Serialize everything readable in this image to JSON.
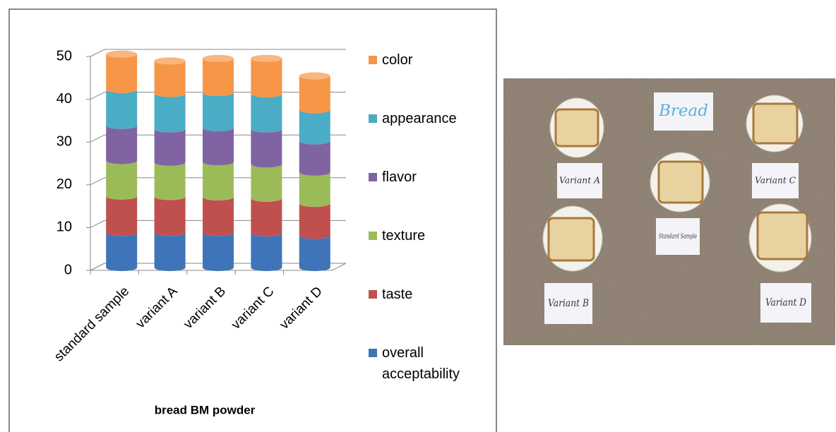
{
  "chart_data": {
    "type": "stacked-bar",
    "x_label": "bread BM powder",
    "categories": [
      "standard sample",
      "variant A",
      "variant B",
      "variant C",
      "variant D"
    ],
    "series": [
      {
        "name": "overall acceptability",
        "color": "#3f74b8",
        "values": [
          8.2,
          8.2,
          8.2,
          8.1,
          7.5
        ]
      },
      {
        "name": "taste",
        "color": "#c0504d",
        "values": [
          8.5,
          8.4,
          8.3,
          8.1,
          7.5
        ]
      },
      {
        "name": "texture",
        "color": "#9bbb59",
        "values": [
          8.3,
          8.0,
          8.2,
          8.0,
          7.3
        ]
      },
      {
        "name": "flavor",
        "color": "#8064a2",
        "values": [
          8.2,
          7.8,
          8.0,
          8.2,
          7.3
        ]
      },
      {
        "name": "appearance",
        "color": "#4bacc6",
        "values": [
          8.4,
          8.3,
          8.2,
          8.2,
          7.3
        ]
      },
      {
        "name": "color",
        "color": "#f79646",
        "values": [
          8.3,
          7.6,
          8.0,
          8.3,
          7.9
        ]
      }
    ],
    "ylim": [
      0,
      50
    ],
    "yticks": [
      0,
      10,
      20,
      30,
      40,
      50
    ],
    "grid": true,
    "legend": "right"
  },
  "photo": {
    "labels": [
      "Bread",
      "Variant A",
      "Variant C",
      "Standard Sample",
      "Variant B",
      "Variant D"
    ]
  }
}
